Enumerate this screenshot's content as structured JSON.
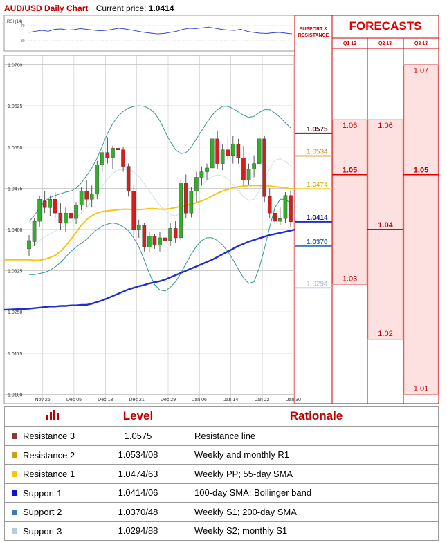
{
  "header": {
    "title": "AUD/USD Daily Chart",
    "price_label": "Current price:",
    "price_value": "1.0414"
  },
  "rsi": {
    "label": "RSI (14)",
    "levels": [
      "70",
      "30"
    ],
    "values": [
      52,
      55,
      57,
      55,
      60,
      61,
      58,
      59,
      62,
      60,
      58,
      56,
      57,
      60,
      63,
      61,
      58,
      55,
      52,
      50,
      48,
      49,
      52,
      55,
      60,
      63,
      62,
      64,
      66,
      63,
      60,
      58,
      57,
      60,
      55,
      52,
      50,
      49,
      51,
      52,
      50,
      48
    ]
  },
  "sr_header": [
    "SUPPORT &",
    "RESISTANCE"
  ],
  "forecasts": {
    "title": "FORECASTS",
    "quarters": [
      "Q1 13",
      "Q2 13",
      "Q3 13"
    ],
    "values": [
      [
        "1.06",
        "1.05",
        "1.03"
      ],
      [
        "1.06",
        "1.04",
        "1.02"
      ],
      [
        "1.07",
        "1.05",
        "1.01"
      ]
    ],
    "nums": [
      [
        1.06,
        1.05,
        1.03
      ],
      [
        1.06,
        1.04,
        1.02
      ],
      [
        1.07,
        1.05,
        1.01
      ]
    ],
    "colors": {
      "fill": "#fde0e0",
      "line": "#e00000",
      "border": "#cc0000"
    }
  },
  "chart_data": {
    "type": "candlestick",
    "title": "AUD/USD Daily Chart",
    "ylim": [
      1.0083,
      1.0717
    ],
    "y_ticks": [
      "1.0700",
      "1.0625",
      "1.0550",
      "1.0475",
      "1.0400",
      "1.0325",
      "1.0250",
      "1.0175",
      "1.0100"
    ],
    "y_tick_values": [
      1.07,
      1.0625,
      1.055,
      1.0475,
      1.04,
      1.0325,
      1.025,
      1.0175,
      1.01
    ],
    "x_ticks": [
      {
        "label": "Nov 26",
        "i": 1
      },
      {
        "label": "Dec 05",
        "i": 7
      },
      {
        "label": "Dec 13",
        "i": 13
      },
      {
        "label": "Dec 21",
        "i": 19
      },
      {
        "label": "Dec 29",
        "i": 25
      },
      {
        "label": "Jan 06",
        "i": 31
      },
      {
        "label": "Jan 14",
        "i": 37
      },
      {
        "label": "Jan 22",
        "i": 43
      },
      {
        "label": "Jan 30",
        "i": 49
      }
    ],
    "candles": [
      [
        1.0365,
        1.039,
        1.0352,
        1.038
      ],
      [
        1.0378,
        1.042,
        1.037,
        1.0415
      ],
      [
        1.0415,
        1.0462,
        1.0405,
        1.0455
      ],
      [
        1.0452,
        1.047,
        1.043,
        1.044
      ],
      [
        1.044,
        1.0462,
        1.0425,
        1.0455
      ],
      [
        1.0455,
        1.0468,
        1.042,
        1.043
      ],
      [
        1.043,
        1.0448,
        1.04,
        1.0412
      ],
      [
        1.0412,
        1.044,
        1.0395,
        1.043
      ],
      [
        1.043,
        1.0445,
        1.0415,
        1.042
      ],
      [
        1.042,
        1.045,
        1.041,
        1.0445
      ],
      [
        1.0445,
        1.0478,
        1.0435,
        1.047
      ],
      [
        1.047,
        1.049,
        1.044,
        1.0455
      ],
      [
        1.0455,
        1.048,
        1.044,
        1.0465
      ],
      [
        1.0465,
        1.0525,
        1.0455,
        1.0518
      ],
      [
        1.0518,
        1.0545,
        1.0505,
        1.054
      ],
      [
        1.054,
        1.0568,
        1.052,
        1.053
      ],
      [
        1.053,
        1.0552,
        1.051,
        1.0548
      ],
      [
        1.0548,
        1.056,
        1.053,
        1.0545
      ],
      [
        1.0545,
        1.055,
        1.0505,
        1.0515
      ],
      [
        1.0515,
        1.052,
        1.046,
        1.047
      ],
      [
        1.047,
        1.048,
        1.039,
        1.04
      ],
      [
        1.04,
        1.0418,
        1.0385,
        1.0408
      ],
      [
        1.0408,
        1.0412,
        1.036,
        1.0368
      ],
      [
        1.0368,
        1.0395,
        1.0358,
        1.0388
      ],
      [
        1.0388,
        1.0392,
        1.0365,
        1.0372
      ],
      [
        1.0372,
        1.0395,
        1.036,
        1.0385
      ],
      [
        1.0385,
        1.0402,
        1.0372,
        1.038
      ],
      [
        1.038,
        1.0412,
        1.037,
        1.0402
      ],
      [
        1.0402,
        1.0415,
        1.0375,
        1.0385
      ],
      [
        1.0385,
        1.049,
        1.038,
        1.0485
      ],
      [
        1.0485,
        1.05,
        1.042,
        1.043
      ],
      [
        1.043,
        1.0478,
        1.0422,
        1.047
      ],
      [
        1.047,
        1.0505,
        1.045,
        1.0495
      ],
      [
        1.0495,
        1.0515,
        1.048,
        1.0505
      ],
      [
        1.0505,
        1.052,
        1.049,
        1.0512
      ],
      [
        1.0512,
        1.0575,
        1.0505,
        1.0565
      ],
      [
        1.0565,
        1.058,
        1.051,
        1.052
      ],
      [
        1.052,
        1.0555,
        1.0508,
        1.0545
      ],
      [
        1.0545,
        1.0568,
        1.0525,
        1.0535
      ],
      [
        1.0535,
        1.057,
        1.052,
        1.0555
      ],
      [
        1.0555,
        1.0565,
        1.052,
        1.053
      ],
      [
        1.053,
        1.0552,
        1.048,
        1.049
      ],
      [
        1.049,
        1.052,
        1.0482,
        1.051
      ],
      [
        1.051,
        1.0535,
        1.0495,
        1.052
      ],
      [
        1.052,
        1.0572,
        1.051,
        1.0565
      ],
      [
        1.0565,
        1.057,
        1.045,
        1.046
      ],
      [
        1.046,
        1.0475,
        1.042,
        1.043
      ],
      [
        1.043,
        1.044,
        1.041,
        1.0415
      ],
      [
        1.0415,
        1.044,
        1.0408,
        1.042
      ],
      [
        1.042,
        1.0468,
        1.0412,
        1.0462
      ],
      [
        1.0462,
        1.047,
        1.0405,
        1.0414
      ]
    ],
    "sma55": [
      1.0345,
      1.0344,
      1.0344,
      1.0346,
      1.0349,
      1.0353,
      1.036,
      1.037,
      1.0382,
      1.0395,
      1.0408,
      1.0418,
      1.0425,
      1.043,
      1.0433,
      1.0434,
      1.0435,
      1.0436,
      1.0437,
      1.0437,
      1.0436,
      1.0436,
      1.0437,
      1.0438,
      1.0438,
      1.0437,
      1.0437,
      1.0438,
      1.044,
      1.0442,
      1.0444,
      1.0446,
      1.0449,
      1.0452,
      1.0456,
      1.0461,
      1.0466,
      1.047,
      1.0473,
      1.0476,
      1.0478,
      1.0479,
      1.048,
      1.048,
      1.048,
      1.048,
      1.0479,
      1.0478,
      1.0477,
      1.0476,
      1.0474
    ],
    "sma100": [
      1.0256,
      1.0257,
      1.0258,
      1.0259,
      1.026,
      1.026,
      1.0261,
      1.0261,
      1.0262,
      1.0262,
      1.0263,
      1.0263,
      1.0265,
      1.0268,
      1.0271,
      1.0275,
      1.0279,
      1.0283,
      1.0287,
      1.0291,
      1.0294,
      1.0297,
      1.0299,
      1.0302,
      1.0304,
      1.0306,
      1.0309,
      1.0313,
      1.0317,
      1.0321,
      1.0325,
      1.0329,
      1.0333,
      1.0337,
      1.0341,
      1.0345,
      1.035,
      1.0355,
      1.036,
      1.0365,
      1.037,
      1.0374,
      1.0378,
      1.0381,
      1.0384,
      1.0387,
      1.039,
      1.0392,
      1.0394,
      1.0396,
      1.0398
    ],
    "bb_upper": [
      1.0415,
      1.0425,
      1.044,
      1.0452,
      1.0458,
      1.0462,
      1.0465,
      1.0468,
      1.047,
      1.0475,
      1.0485,
      1.0498,
      1.0512,
      1.053,
      1.0552,
      1.0575,
      1.0593,
      1.0606,
      1.0615,
      1.0621,
      1.0624,
      1.0625,
      1.0624,
      1.062,
      1.0612,
      1.0598,
      1.0578,
      1.056,
      1.0545,
      1.0538,
      1.054,
      1.055,
      1.0565,
      1.058,
      1.0595,
      1.0608,
      1.0618,
      1.0624,
      1.0624,
      1.062,
      1.0614,
      1.0608,
      1.0604,
      1.0606,
      1.0613,
      1.0618,
      1.0618,
      1.0612,
      1.0604,
      1.0594,
      1.0585
    ],
    "bb_lower": [
      1.0318,
      1.0318,
      1.032,
      1.0322,
      1.0326,
      1.0332,
      1.034,
      1.035,
      1.036,
      1.0368,
      1.0375,
      1.0382,
      1.0392,
      1.04,
      1.0406,
      1.041,
      1.0412,
      1.041,
      1.0405,
      1.0398,
      1.0385,
      1.0368,
      1.0345,
      1.032,
      1.03,
      1.029,
      1.0288,
      1.0295,
      1.0305,
      1.032,
      1.0338,
      1.0355,
      1.037,
      1.038,
      1.0385,
      1.0385,
      1.038,
      1.0372,
      1.036,
      1.0345,
      1.0328,
      1.0312,
      1.0302,
      1.0305,
      1.033,
      1.0365,
      1.0405,
      1.044,
      1.0455,
      1.0455,
      1.0448
    ],
    "bb_mid": [
      1.0366,
      1.0371,
      1.038,
      1.0387,
      1.0392,
      1.0397,
      1.0402,
      1.0409,
      1.0415,
      1.0421,
      1.043,
      1.044,
      1.0452,
      1.0465,
      1.0479,
      1.0492,
      1.0502,
      1.0508,
      1.051,
      1.0509,
      1.0504,
      1.0496,
      1.0484,
      1.047,
      1.0456,
      1.0444,
      1.0433,
      1.0427,
      1.0425,
      1.0429,
      1.0439,
      1.0452,
      1.0467,
      1.048,
      1.049,
      1.0496,
      1.0499,
      1.0498,
      1.0492,
      1.0482,
      1.0471,
      1.046,
      1.0453,
      1.0455,
      1.0471,
      1.0491,
      1.0511,
      1.0526,
      1.0529,
      1.0524,
      1.0516
    ]
  },
  "levels": [
    {
      "value": 1.0575,
      "label": "1.0575",
      "color": "#6b1a24",
      "text_color": "#4a0f18",
      "bold": true
    },
    {
      "value": 1.0534,
      "label": "1.0534",
      "color": "#e6a646",
      "text_color": "#d08a1c",
      "bold": false
    },
    {
      "value": 1.0474,
      "label": "1.0474",
      "color": "#f2d64a",
      "text_color": "#d4aa00",
      "bold": false
    },
    {
      "value": 1.0414,
      "label": "1.0414",
      "color": "#1f2fcc",
      "text_color": "#102090",
      "bold": true
    },
    {
      "value": 1.037,
      "label": "1.0370",
      "color": "#3e7fbf",
      "text_color": "#2e6ca8",
      "bold": true
    },
    {
      "value": 1.0294,
      "label": "1.0294",
      "color": "#bfd5e6",
      "text_color": "#9fbfd6",
      "bold": false
    }
  ],
  "colors": {
    "up": "#33b02a",
    "down": "#d41f1f",
    "sma55": "#f5c518",
    "sma100": "#1f2fcc",
    "bb": "#2f9a8f",
    "bb_mid": "#cfe0dc",
    "grid": "#bdbdbd"
  },
  "table": {
    "headers": {
      "level": "Level",
      "rationale": "Rationale"
    },
    "rows": [
      {
        "name": "Resistance 3",
        "level": "1.0575",
        "rationale": "Resistance line",
        "color": "#8b3a3a"
      },
      {
        "name": "Resistance 2",
        "level": "1.0534/08",
        "rationale": "Weekly and monthly R1",
        "color": "#c8a020"
      },
      {
        "name": "Resistance 1",
        "level": "1.0474/63",
        "rationale": "Weekly PP; 55-day SMA",
        "color": "#f5c518"
      },
      {
        "name": "Support 1",
        "level": "1.0414/06",
        "rationale": "100-day SMA; Bollinger band",
        "color": "#1212c8"
      },
      {
        "name": "Support 2",
        "level": "1.0370/48",
        "rationale": "Weekly S1; 200-day SMA",
        "color": "#3a78b8"
      },
      {
        "name": "Support 3",
        "level": "1.0294/88",
        "rationale": "Weekly S2; monthly S1",
        "color": "#b8cce0"
      }
    ]
  }
}
